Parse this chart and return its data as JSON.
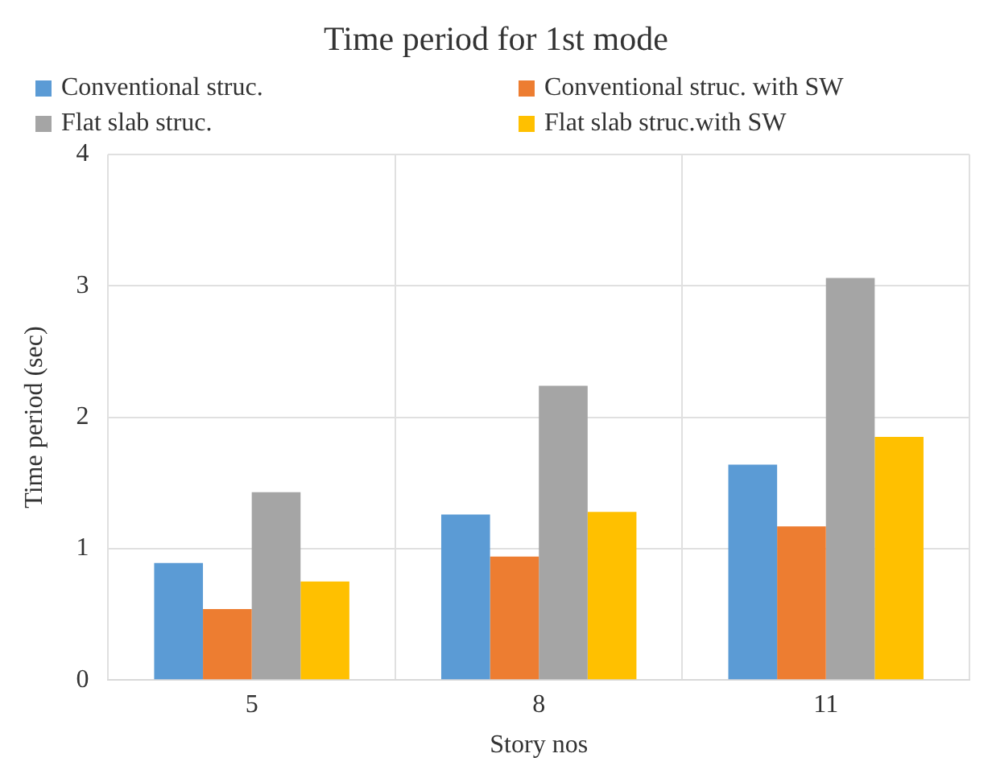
{
  "chart_data": {
    "type": "bar",
    "title": "Time period for 1st mode",
    "xlabel": "Story nos",
    "ylabel": "Time period (sec)",
    "categories": [
      "5",
      "8",
      "11"
    ],
    "series": [
      {
        "name": "Conventional struc.",
        "color": "#5b9bd5",
        "values": [
          0.89,
          1.26,
          1.64
        ]
      },
      {
        "name": "Conventional struc. with SW",
        "color": "#ed7d31",
        "values": [
          0.54,
          0.94,
          1.17
        ]
      },
      {
        "name": "Flat slab struc.",
        "color": "#a5a5a5",
        "values": [
          1.43,
          2.24,
          3.06
        ]
      },
      {
        "name": "Flat slab struc.with SW",
        "color": "#ffc000",
        "values": [
          0.75,
          1.28,
          1.85
        ]
      }
    ],
    "ylim": [
      0,
      4
    ],
    "yticks": [
      0,
      1,
      2,
      3,
      4
    ],
    "grid": true,
    "legend": "top"
  }
}
